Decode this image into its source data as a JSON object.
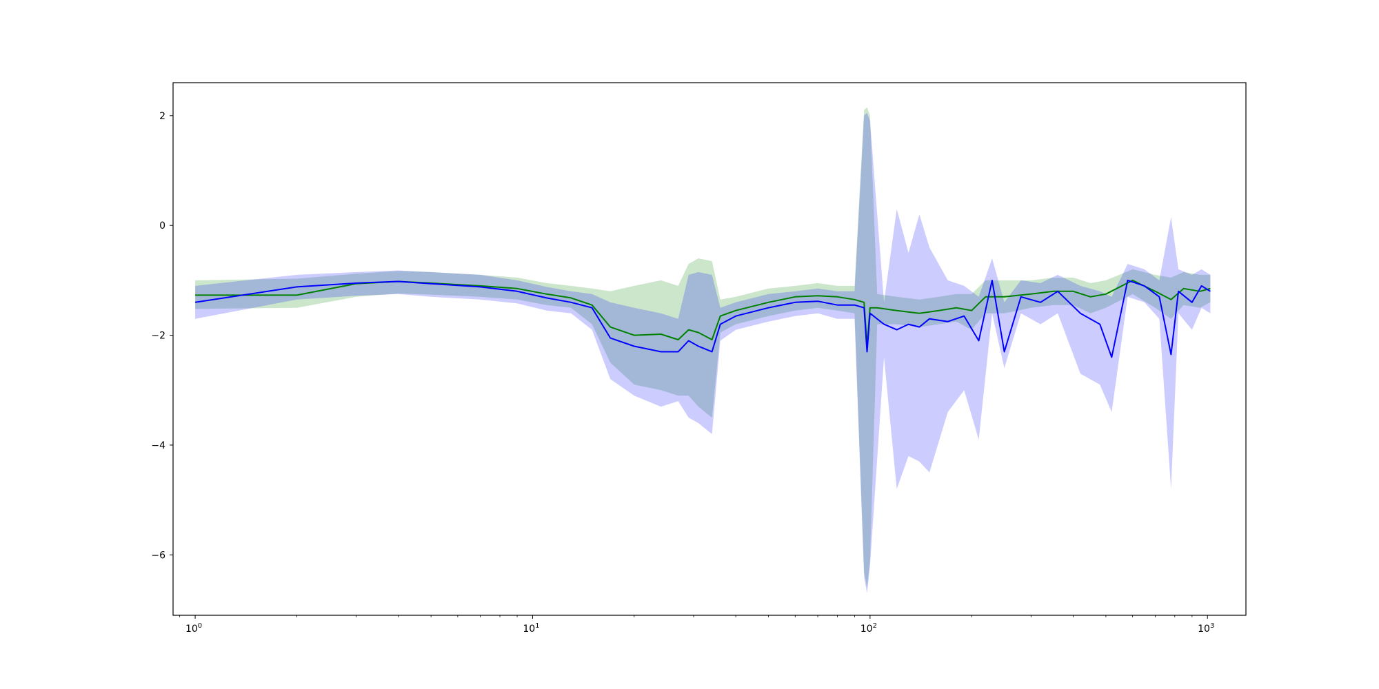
{
  "chart_data": {
    "type": "line",
    "title": "",
    "xlabel": "",
    "ylabel": "",
    "xscale": "log",
    "xlim": [
      0.86,
      1300
    ],
    "ylim": [
      -7.1,
      2.6
    ],
    "grid": false,
    "legend": "none",
    "x_ticks": [
      {
        "value": 1,
        "base": "10",
        "exp": "0"
      },
      {
        "value": 10,
        "base": "10",
        "exp": "1"
      },
      {
        "value": 100,
        "base": "10",
        "exp": "2"
      },
      {
        "value": 1000,
        "base": "10",
        "exp": "3"
      }
    ],
    "y_ticks": [
      {
        "value": 2,
        "label": "2"
      },
      {
        "value": 0,
        "label": "0"
      },
      {
        "value": -2,
        "label": "−2"
      },
      {
        "value": -4,
        "label": "−4"
      },
      {
        "value": -6,
        "label": "−6"
      }
    ],
    "series": [
      {
        "color": "#008000",
        "band_color": "#008000",
        "points": [
          [
            1,
            -1.27,
            -1.0,
            -1.52
          ],
          [
            2,
            -1.27,
            -0.97,
            -1.5
          ],
          [
            3,
            -1.06,
            -0.88,
            -1.3
          ],
          [
            4,
            -1.02,
            -0.83,
            -1.24
          ],
          [
            5,
            -1.05,
            -0.85,
            -1.26
          ],
          [
            7,
            -1.1,
            -0.9,
            -1.3
          ],
          [
            9,
            -1.15,
            -0.95,
            -1.35
          ],
          [
            11,
            -1.25,
            -1.05,
            -1.45
          ],
          [
            13,
            -1.32,
            -1.1,
            -1.5
          ],
          [
            15,
            -1.45,
            -1.15,
            -1.8
          ],
          [
            17,
            -1.85,
            -1.2,
            -2.5
          ],
          [
            20,
            -2.0,
            -1.1,
            -2.9
          ],
          [
            24,
            -1.98,
            -1.0,
            -3.0
          ],
          [
            27,
            -2.08,
            -1.1,
            -3.1
          ],
          [
            29,
            -1.9,
            -0.7,
            -3.1
          ],
          [
            31,
            -1.95,
            -0.6,
            -3.3
          ],
          [
            34,
            -2.08,
            -0.65,
            -3.5
          ],
          [
            36,
            -1.65,
            -1.35,
            -1.95
          ],
          [
            40,
            -1.55,
            -1.3,
            -1.8
          ],
          [
            50,
            -1.4,
            -1.15,
            -1.65
          ],
          [
            60,
            -1.3,
            -1.1,
            -1.55
          ],
          [
            70,
            -1.28,
            -1.05,
            -1.5
          ],
          [
            80,
            -1.3,
            -1.1,
            -1.55
          ],
          [
            90,
            -1.35,
            -1.1,
            -1.6
          ],
          [
            96,
            -1.4,
            2.1,
            -6.3
          ],
          [
            98,
            -2.2,
            2.15,
            -6.6
          ],
          [
            100,
            -1.5,
            2.0,
            -6.1
          ],
          [
            105,
            -1.5,
            -1.25,
            -1.8
          ],
          [
            120,
            -1.55,
            -1.3,
            -1.8
          ],
          [
            140,
            -1.6,
            -1.35,
            -1.85
          ],
          [
            160,
            -1.55,
            -1.3,
            -1.8
          ],
          [
            180,
            -1.5,
            -1.25,
            -1.75
          ],
          [
            200,
            -1.55,
            -1.25,
            -1.9
          ],
          [
            220,
            -1.3,
            -1.0,
            -1.6
          ],
          [
            250,
            -1.3,
            -1.0,
            -1.6
          ],
          [
            300,
            -1.25,
            -1.0,
            -1.5
          ],
          [
            350,
            -1.2,
            -0.95,
            -1.45
          ],
          [
            400,
            -1.2,
            -0.95,
            -1.45
          ],
          [
            450,
            -1.3,
            -1.05,
            -1.6
          ],
          [
            500,
            -1.25,
            -1.0,
            -1.5
          ],
          [
            600,
            -1.0,
            -0.8,
            -1.25
          ],
          [
            700,
            -1.2,
            -0.9,
            -1.5
          ],
          [
            780,
            -1.35,
            -0.95,
            -1.7
          ],
          [
            850,
            -1.15,
            -0.85,
            -1.45
          ],
          [
            950,
            -1.2,
            -0.9,
            -1.5
          ],
          [
            1020,
            -1.15,
            -0.9,
            -1.4
          ]
        ]
      },
      {
        "color": "#0000ff",
        "band_color": "#0000ff",
        "points": [
          [
            1,
            -1.4,
            -1.1,
            -1.7
          ],
          [
            2,
            -1.12,
            -0.9,
            -1.35
          ],
          [
            3,
            -1.05,
            -0.85,
            -1.28
          ],
          [
            4,
            -1.02,
            -0.82,
            -1.25
          ],
          [
            5,
            -1.06,
            -0.85,
            -1.3
          ],
          [
            7,
            -1.12,
            -0.9,
            -1.35
          ],
          [
            9,
            -1.2,
            -1.0,
            -1.42
          ],
          [
            11,
            -1.32,
            -1.12,
            -1.55
          ],
          [
            13,
            -1.4,
            -1.2,
            -1.6
          ],
          [
            15,
            -1.5,
            -1.25,
            -1.9
          ],
          [
            17,
            -2.05,
            -1.4,
            -2.8
          ],
          [
            20,
            -2.2,
            -1.5,
            -3.1
          ],
          [
            24,
            -2.3,
            -1.6,
            -3.3
          ],
          [
            27,
            -2.3,
            -1.7,
            -3.2
          ],
          [
            29,
            -2.1,
            -0.9,
            -3.5
          ],
          [
            31,
            -2.2,
            -0.85,
            -3.6
          ],
          [
            34,
            -2.3,
            -0.9,
            -3.8
          ],
          [
            36,
            -1.8,
            -1.5,
            -2.1
          ],
          [
            40,
            -1.65,
            -1.4,
            -1.9
          ],
          [
            50,
            -1.5,
            -1.25,
            -1.75
          ],
          [
            60,
            -1.4,
            -1.2,
            -1.65
          ],
          [
            70,
            -1.38,
            -1.15,
            -1.6
          ],
          [
            80,
            -1.45,
            -1.2,
            -1.7
          ],
          [
            90,
            -1.45,
            -1.2,
            -1.7
          ],
          [
            96,
            -1.5,
            2.0,
            -6.4
          ],
          [
            98,
            -2.3,
            2.05,
            -6.7
          ],
          [
            100,
            -1.6,
            1.9,
            -6.2
          ],
          [
            110,
            -1.8,
            -1.4,
            -2.4
          ],
          [
            120,
            -1.9,
            0.3,
            -4.8
          ],
          [
            130,
            -1.8,
            -0.5,
            -4.2
          ],
          [
            140,
            -1.85,
            0.2,
            -4.3
          ],
          [
            150,
            -1.7,
            -0.4,
            -4.5
          ],
          [
            170,
            -1.75,
            -1.0,
            -3.4
          ],
          [
            190,
            -1.65,
            -1.1,
            -3.0
          ],
          [
            210,
            -2.1,
            -1.3,
            -3.9
          ],
          [
            230,
            -1.0,
            -0.6,
            -1.6
          ],
          [
            250,
            -2.3,
            -1.4,
            -2.6
          ],
          [
            280,
            -1.3,
            -1.0,
            -1.6
          ],
          [
            320,
            -1.4,
            -1.05,
            -1.8
          ],
          [
            360,
            -1.2,
            -0.9,
            -1.6
          ],
          [
            420,
            -1.6,
            -1.1,
            -2.7
          ],
          [
            480,
            -1.8,
            -1.2,
            -2.9
          ],
          [
            520,
            -2.4,
            -1.3,
            -3.4
          ],
          [
            580,
            -1.0,
            -0.7,
            -1.3
          ],
          [
            650,
            -1.1,
            -0.8,
            -1.4
          ],
          [
            720,
            -1.3,
            -1.0,
            -1.7
          ],
          [
            780,
            -2.35,
            0.15,
            -4.8
          ],
          [
            820,
            -1.2,
            -0.8,
            -1.6
          ],
          [
            900,
            -1.4,
            -0.9,
            -1.9
          ],
          [
            960,
            -1.1,
            -0.8,
            -1.5
          ],
          [
            1020,
            -1.2,
            -0.9,
            -1.6
          ]
        ]
      }
    ]
  }
}
